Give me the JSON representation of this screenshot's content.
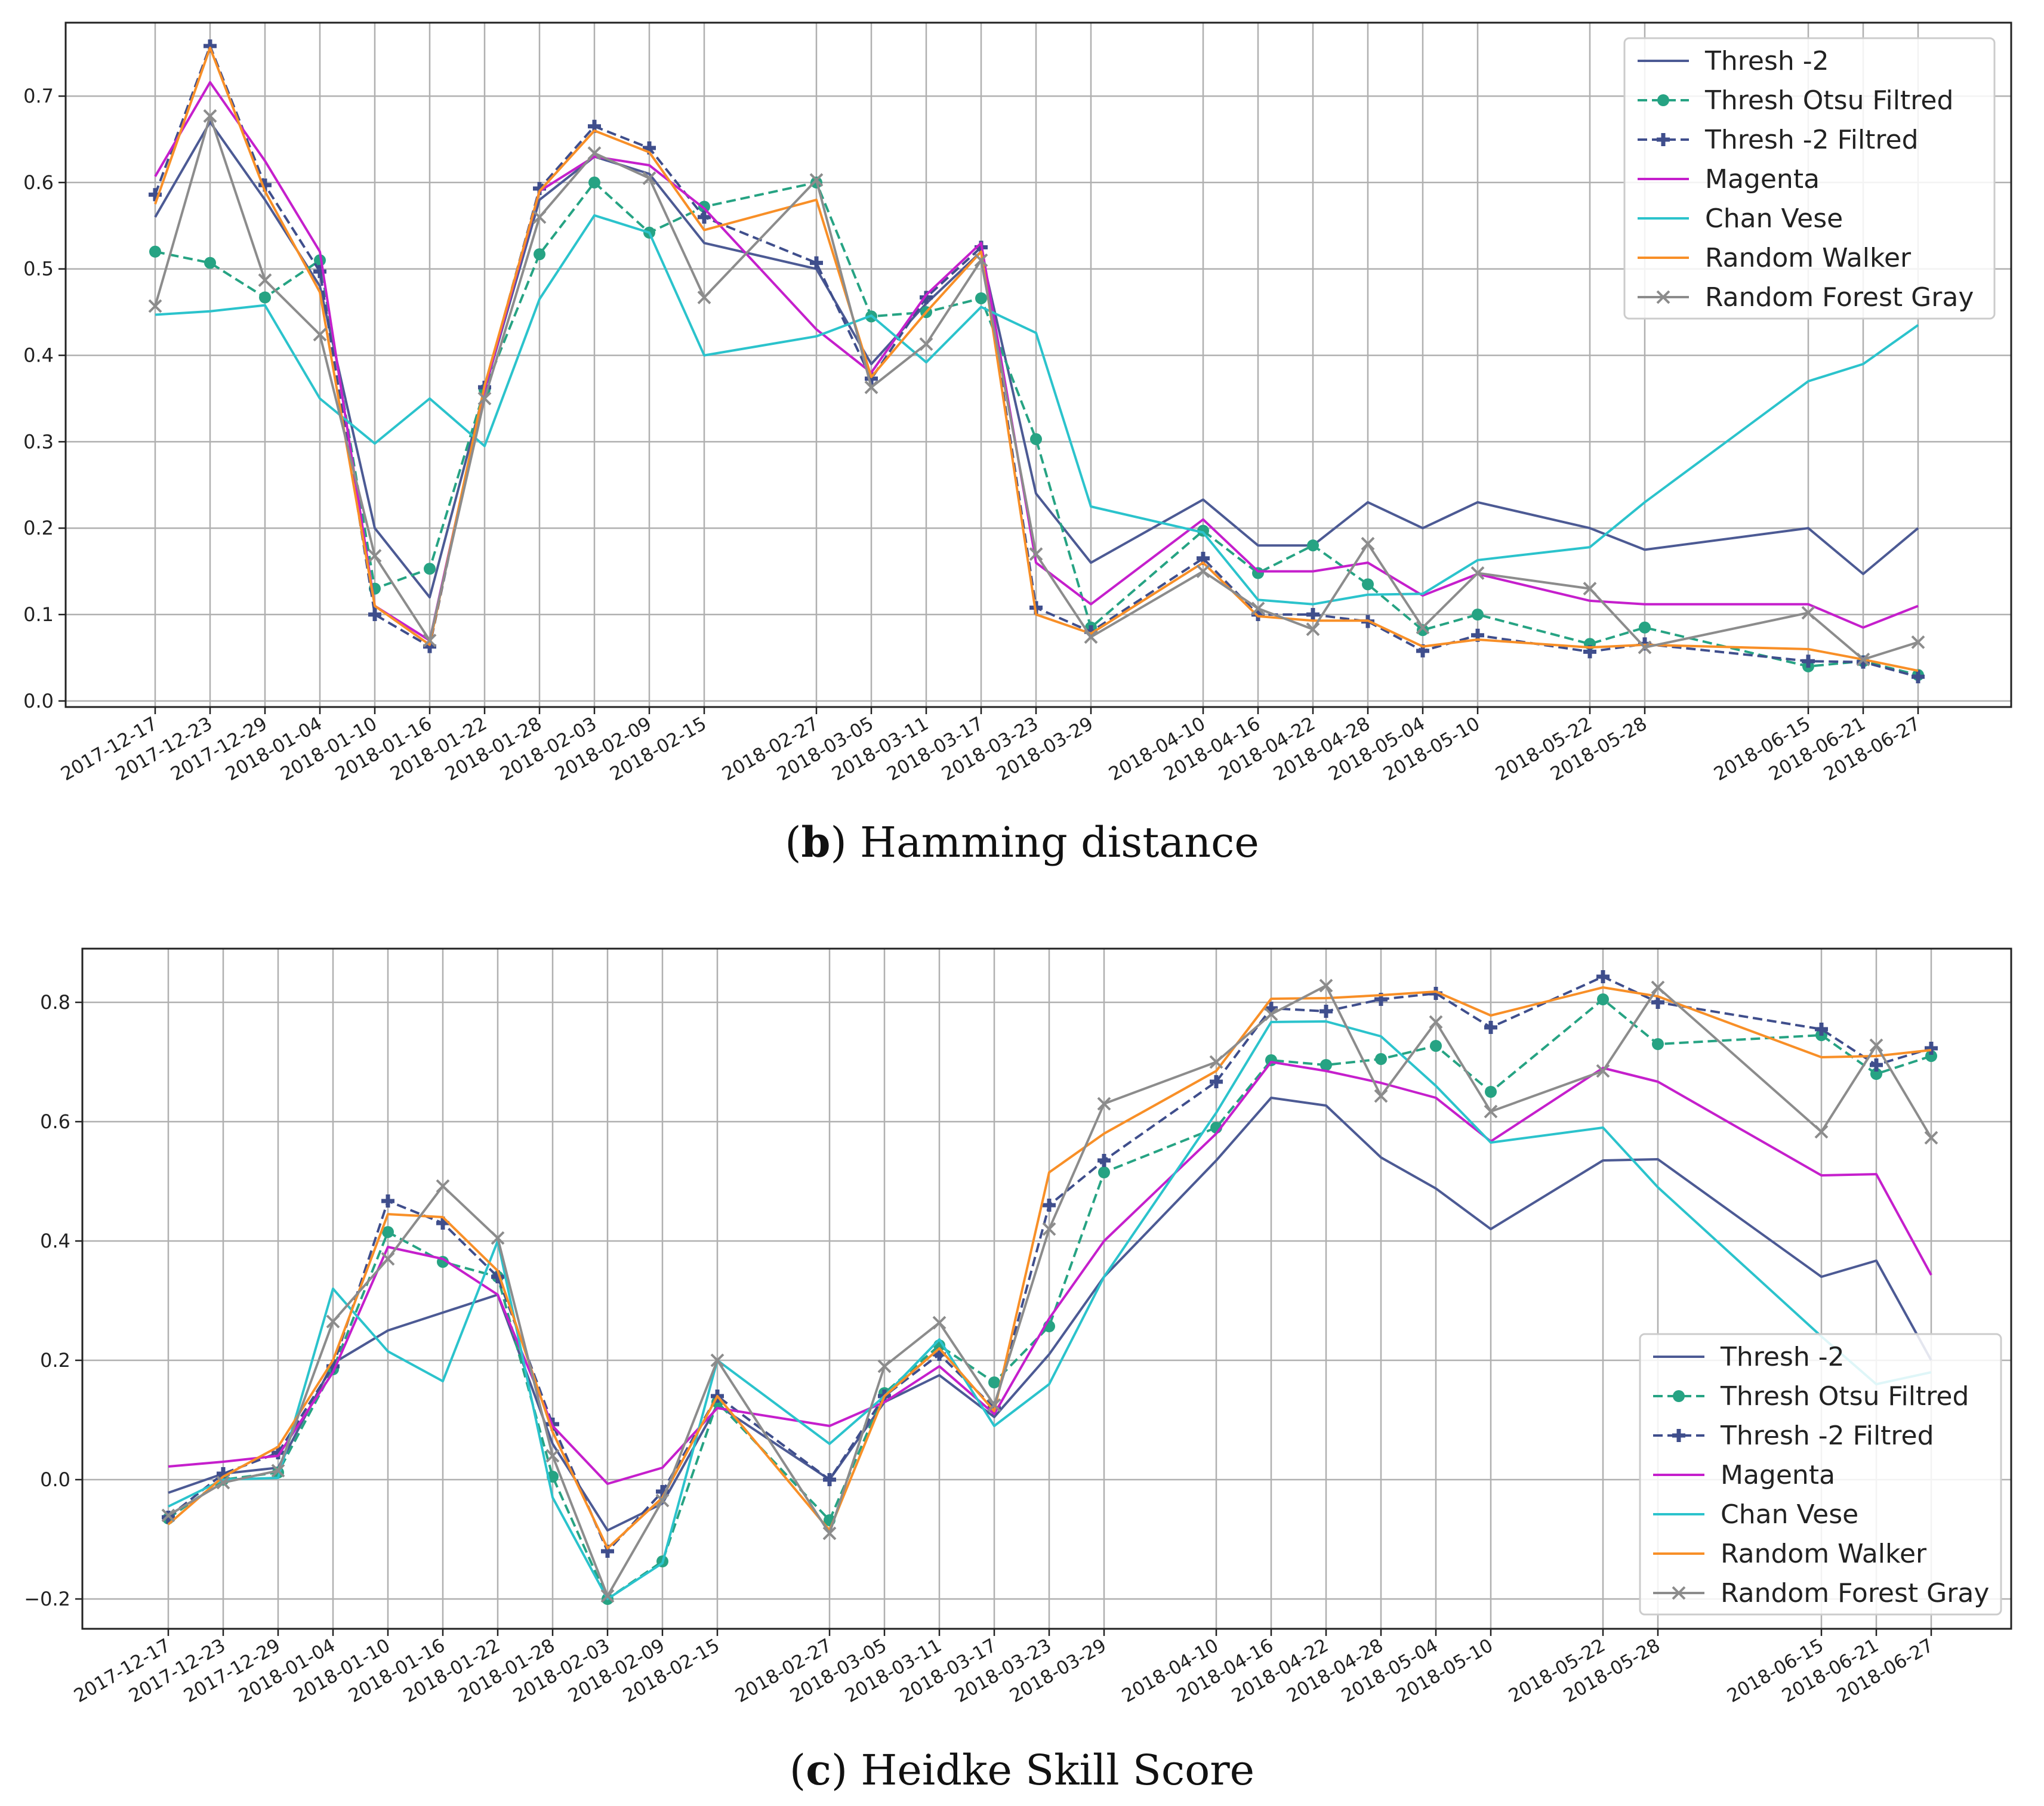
{
  "colors": {
    "thresh2": "#4c5a94",
    "otsu": "#26a383",
    "thresh2f": "#3f4e8c",
    "magenta": "#c51fcc",
    "chanvese": "#2bc3cc",
    "walker": "#f88f27",
    "forest": "#8c8c8c",
    "grid": "#b0b0b0"
  },
  "captions": {
    "b": {
      "letter": "b",
      "text": ") Hamming distance",
      "open": "("
    },
    "c": {
      "letter": "c",
      "text": ") Heidke Skill Score",
      "open": "("
    }
  },
  "chart_data": [
    {
      "id": "b",
      "type": "line",
      "title": "Hamming distance",
      "xlabel": "",
      "ylabel": "",
      "ylim": [
        -0.007,
        0.785
      ],
      "yticks": [
        "0.0",
        "0.1",
        "0.2",
        "0.3",
        "0.4",
        "0.5",
        "0.6",
        "0.7"
      ],
      "grid": true,
      "legend": "top-right",
      "categories": [
        "2017-12-17",
        "2017-12-23",
        "2017-12-29",
        "2018-01-04",
        "2018-01-10",
        "2018-01-16",
        "2018-01-22",
        "2018-01-28",
        "2018-02-03",
        "2018-02-09",
        "2018-02-15",
        "2018-02-27",
        "2018-03-05",
        "2018-03-11",
        "2018-03-17",
        "2018-03-23",
        "2018-03-29",
        "2018-04-10",
        "2018-04-16",
        "2018-04-22",
        "2018-04-28",
        "2018-05-04",
        "2018-05-10",
        "2018-05-22",
        "2018-05-28",
        "2018-06-15",
        "2018-06-21",
        "2018-06-27"
      ],
      "series": [
        {
          "name": "Thresh -2",
          "key": "thresh2",
          "style": "solid",
          "marker": "none",
          "values": [
            0.56,
            0.67,
            0.58,
            0.48,
            0.2,
            0.12,
            0.36,
            0.58,
            0.63,
            0.61,
            0.53,
            0.5,
            0.39,
            0.46,
            0.52,
            0.24,
            0.16,
            0.233,
            0.18,
            0.18,
            0.23,
            0.2,
            0.23,
            0.2,
            0.175,
            0.2,
            0.147,
            0.2
          ]
        },
        {
          "name": "Thresh Otsu Filtred",
          "key": "otsu",
          "style": "dashed",
          "marker": "dot",
          "values": [
            0.52,
            0.507,
            0.467,
            0.51,
            0.13,
            0.153,
            0.36,
            0.517,
            0.6,
            0.542,
            0.572,
            0.6,
            0.445,
            0.45,
            0.466,
            0.303,
            0.085,
            0.197,
            0.148,
            0.18,
            0.135,
            0.082,
            0.1,
            0.066,
            0.085,
            0.04,
            0.046,
            0.03
          ]
        },
        {
          "name": "Thresh -2 Filtred",
          "key": "thresh2f",
          "style": "dashed",
          "marker": "plus",
          "values": [
            0.586,
            0.758,
            0.597,
            0.497,
            0.1,
            0.063,
            0.363,
            0.593,
            0.665,
            0.64,
            0.56,
            0.507,
            0.373,
            0.467,
            0.525,
            0.108,
            0.08,
            0.165,
            0.1,
            0.1,
            0.092,
            0.058,
            0.076,
            0.057,
            0.066,
            0.046,
            0.045,
            0.028
          ]
        },
        {
          "name": "Magenta",
          "key": "magenta",
          "style": "solid",
          "marker": "none",
          "values": [
            0.607,
            0.716,
            0.625,
            0.52,
            0.11,
            0.07,
            0.36,
            0.59,
            0.63,
            0.62,
            0.57,
            0.43,
            0.38,
            0.47,
            0.53,
            0.16,
            0.112,
            0.21,
            0.15,
            0.15,
            0.16,
            0.122,
            0.147,
            0.116,
            0.112,
            0.112,
            0.085,
            0.11
          ]
        },
        {
          "name": "Chan Vese",
          "key": "chanvese",
          "style": "solid",
          "marker": "none",
          "values": [
            0.447,
            0.451,
            0.458,
            0.35,
            0.298,
            0.35,
            0.295,
            0.465,
            0.562,
            0.542,
            0.4,
            0.422,
            0.446,
            0.392,
            0.456,
            0.426,
            0.225,
            0.195,
            0.117,
            0.112,
            0.123,
            0.124,
            0.163,
            0.178,
            0.23,
            0.37,
            0.39,
            0.435
          ]
        },
        {
          "name": "Random Walker",
          "key": "walker",
          "style": "solid",
          "marker": "none",
          "values": [
            0.575,
            0.756,
            0.59,
            0.473,
            0.11,
            0.065,
            0.365,
            0.59,
            0.66,
            0.635,
            0.545,
            0.58,
            0.375,
            0.45,
            0.52,
            0.1,
            0.078,
            0.16,
            0.098,
            0.093,
            0.093,
            0.063,
            0.071,
            0.062,
            0.065,
            0.06,
            0.048,
            0.035
          ]
        },
        {
          "name": "Random Forest  Gray",
          "key": "forest",
          "style": "solid",
          "marker": "x",
          "values": [
            0.457,
            0.677,
            0.487,
            0.424,
            0.168,
            0.07,
            0.35,
            0.56,
            0.634,
            0.605,
            0.467,
            0.603,
            0.363,
            0.413,
            0.51,
            0.17,
            0.074,
            0.15,
            0.107,
            0.083,
            0.182,
            0.085,
            0.148,
            0.13,
            0.062,
            0.102,
            0.048,
            0.068
          ]
        }
      ]
    },
    {
      "id": "c",
      "type": "line",
      "title": "Heidke Skill Score",
      "xlabel": "",
      "ylabel": "",
      "ylim": [
        -0.25,
        0.89
      ],
      "yticks": [
        "−0.2",
        "0.0",
        "0.2",
        "0.4",
        "0.6",
        "0.8"
      ],
      "grid": true,
      "legend": "bottom-right",
      "categories": [
        "2017-12-17",
        "2017-12-23",
        "2017-12-29",
        "2018-01-04",
        "2018-01-10",
        "2018-01-16",
        "2018-01-22",
        "2018-01-28",
        "2018-02-03",
        "2018-02-09",
        "2018-02-15",
        "2018-02-27",
        "2018-03-05",
        "2018-03-11",
        "2018-03-17",
        "2018-03-23",
        "2018-03-29",
        "2018-04-10",
        "2018-04-16",
        "2018-04-22",
        "2018-04-28",
        "2018-05-04",
        "2018-05-10",
        "2018-05-22",
        "2018-05-28",
        "2018-06-15",
        "2018-06-21",
        "2018-06-27"
      ],
      "series": [
        {
          "name": "Thresh -2",
          "key": "thresh2",
          "style": "solid",
          "marker": "none",
          "values": [
            -0.022,
            0.01,
            0.02,
            0.195,
            0.25,
            0.28,
            0.31,
            0.06,
            -0.085,
            -0.04,
            0.125,
            0.0,
            0.13,
            0.175,
            0.105,
            0.21,
            0.34,
            0.535,
            0.64,
            0.627,
            0.54,
            0.488,
            0.42,
            0.535,
            0.537,
            0.34,
            0.367,
            0.2
          ]
        },
        {
          "name": "Thresh Otsu Filtred",
          "key": "otsu",
          "style": "dashed",
          "marker": "dot",
          "values": [
            -0.065,
            0.0,
            0.012,
            0.185,
            0.415,
            0.365,
            0.34,
            0.005,
            -0.2,
            -0.137,
            0.13,
            -0.068,
            0.145,
            0.225,
            0.163,
            0.257,
            0.515,
            0.59,
            0.703,
            0.695,
            0.705,
            0.727,
            0.65,
            0.805,
            0.73,
            0.745,
            0.68,
            0.71
          ]
        },
        {
          "name": "Thresh -2 Filtred",
          "key": "thresh2f",
          "style": "dashed",
          "marker": "plus",
          "values": [
            -0.063,
            0.01,
            0.045,
            0.19,
            0.467,
            0.43,
            0.34,
            0.093,
            -0.12,
            -0.02,
            0.14,
            0.0,
            0.14,
            0.21,
            0.12,
            0.46,
            0.535,
            0.667,
            0.79,
            0.785,
            0.805,
            0.815,
            0.758,
            0.843,
            0.8,
            0.755,
            0.695,
            0.723
          ]
        },
        {
          "name": "Magenta",
          "key": "magenta",
          "style": "solid",
          "marker": "none",
          "values": [
            0.022,
            0.03,
            0.04,
            0.18,
            0.39,
            0.37,
            0.31,
            0.09,
            -0.007,
            0.02,
            0.12,
            0.09,
            0.13,
            0.19,
            0.11,
            0.27,
            0.4,
            0.58,
            0.7,
            0.685,
            0.665,
            0.64,
            0.567,
            0.69,
            0.667,
            0.51,
            0.512,
            0.343
          ]
        },
        {
          "name": "Chan Vese",
          "key": "chanvese",
          "style": "solid",
          "marker": "none",
          "values": [
            -0.045,
            0.0,
            0.003,
            0.32,
            0.215,
            0.165,
            0.4,
            -0.03,
            -0.2,
            -0.14,
            0.2,
            0.06,
            0.14,
            0.235,
            0.09,
            0.16,
            0.34,
            0.615,
            0.767,
            0.768,
            0.743,
            0.66,
            0.565,
            0.59,
            0.49,
            0.24,
            0.16,
            0.18
          ]
        },
        {
          "name": "Random Walker",
          "key": "walker",
          "style": "solid",
          "marker": "none",
          "values": [
            -0.075,
            0.005,
            0.055,
            0.2,
            0.445,
            0.44,
            0.35,
            0.08,
            -0.115,
            -0.03,
            0.14,
            -0.085,
            0.14,
            0.22,
            0.115,
            0.515,
            0.58,
            0.685,
            0.806,
            0.807,
            0.812,
            0.818,
            0.778,
            0.825,
            0.81,
            0.708,
            0.71,
            0.72
          ]
        },
        {
          "name": "Random Forest  Gray",
          "key": "forest",
          "style": "solid",
          "marker": "x",
          "values": [
            -0.06,
            -0.005,
            0.015,
            0.265,
            0.37,
            0.492,
            0.405,
            0.04,
            -0.195,
            -0.035,
            0.2,
            -0.09,
            0.19,
            0.263,
            0.125,
            0.42,
            0.63,
            0.7,
            0.78,
            0.828,
            0.643,
            0.767,
            0.617,
            0.685,
            0.825,
            0.583,
            0.728,
            0.573
          ]
        }
      ]
    }
  ]
}
